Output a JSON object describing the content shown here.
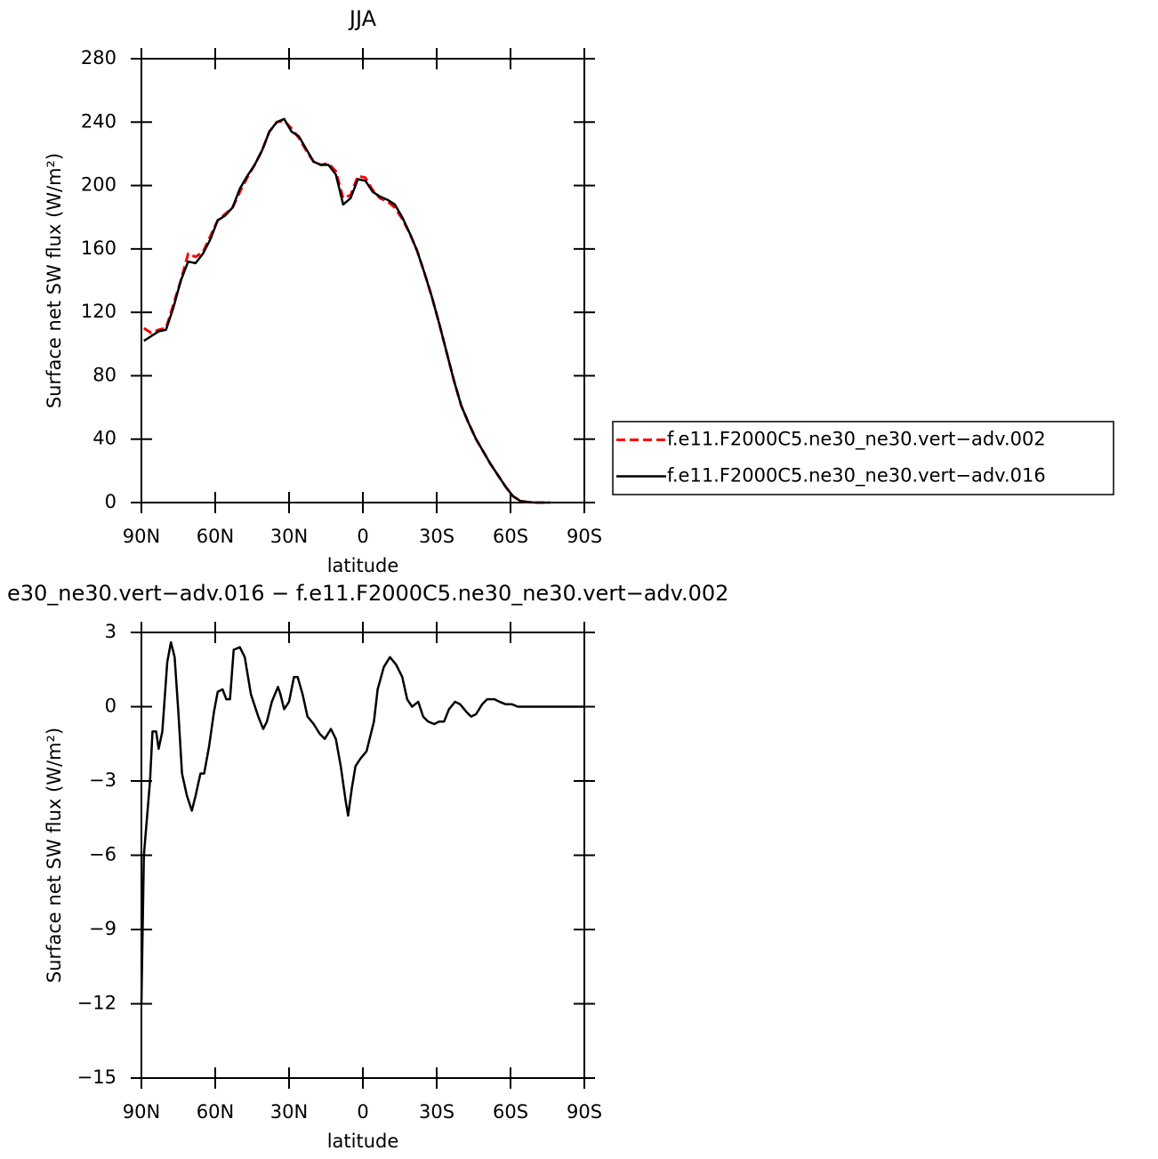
{
  "chart_data": [
    {
      "type": "line",
      "title": "JJA",
      "xlabel": "latitude",
      "ylabel": "Surface net SW flux (W/m²)",
      "x": [
        89,
        86,
        83,
        80,
        77,
        74,
        71,
        68,
        65,
        62,
        59,
        56,
        53,
        50,
        47,
        44,
        41,
        38,
        35,
        32,
        29,
        26,
        23,
        20,
        17,
        14,
        11,
        8,
        5,
        2,
        -1,
        -4,
        -7,
        -10,
        -13,
        -16,
        -19,
        -22,
        -25,
        -28,
        -31,
        -34,
        -37,
        -40,
        -43,
        -46,
        -49,
        -52,
        -55,
        -58,
        -61,
        -64,
        -67,
        -70,
        -73,
        -76
      ],
      "series": [
        {
          "name": "f.e11.F2000C5.ne30_ne30.vert−adv.002",
          "color": "#ff0000",
          "line_style": "dashed",
          "values": [
            110,
            107,
            109,
            110,
            125,
            140,
            157,
            155,
            158,
            168,
            178,
            182,
            186,
            196,
            205,
            213,
            222,
            234,
            240,
            241,
            236,
            230,
            222,
            215,
            213,
            214,
            209,
            192,
            194,
            206,
            205,
            197,
            192,
            190,
            186,
            179,
            170,
            159,
            145,
            130,
            113,
            95,
            77,
            61,
            50,
            40,
            32,
            24,
            17,
            10,
            4,
            1,
            0.3,
            0,
            0,
            0
          ]
        },
        {
          "name": "f.e11.F2000C5.ne30_ne30.vert−adv.016",
          "color": "#000000",
          "line_style": "solid",
          "values": [
            102,
            105,
            108,
            109,
            123,
            140,
            152,
            151,
            157,
            166,
            178,
            181,
            186,
            198,
            206,
            213,
            222,
            234,
            240,
            242,
            234,
            231,
            223,
            215,
            213,
            213,
            207,
            188,
            192,
            204,
            203,
            196,
            193,
            191,
            188,
            180,
            170,
            159,
            145,
            130,
            113,
            95,
            77,
            61,
            50,
            40,
            32,
            24,
            17,
            10,
            4,
            1,
            0.3,
            0,
            0,
            0
          ]
        }
      ],
      "xlim": [
        90,
        -90
      ],
      "xticks": [
        {
          "value": 90,
          "label": "90N"
        },
        {
          "value": 60,
          "label": "60N"
        },
        {
          "value": 30,
          "label": "30N"
        },
        0,
        {
          "value": -30,
          "label": "30S"
        },
        {
          "value": -60,
          "label": "60S"
        },
        {
          "value": -90,
          "label": "90S"
        }
      ],
      "ylim": [
        0,
        280
      ],
      "yticks": [
        0,
        40,
        80,
        120,
        160,
        200,
        240,
        280
      ],
      "legend": "right"
    },
    {
      "type": "line",
      "title": "e30_ne30.vert−adv.016 − f.e11.F2000C5.ne30_ne30.vert−adv.002",
      "xlabel": "latitude",
      "ylabel": "Surface net SW flux (W/m²)",
      "x": [
        90,
        89,
        86.5,
        85.5,
        84,
        83,
        81.5,
        79.5,
        78,
        76.5,
        75,
        73.5,
        71.5,
        69.5,
        68,
        66,
        64.5,
        62.5,
        60.5,
        59,
        57,
        55.5,
        54,
        52.5,
        50,
        48,
        45.5,
        42.5,
        40.5,
        39,
        37,
        34.5,
        33.5,
        32,
        30,
        28,
        26.5,
        24.5,
        22.5,
        20,
        17.5,
        15.5,
        13,
        11,
        9,
        7,
        6,
        4.5,
        3,
        1,
        -1.5,
        -4.5,
        -6,
        -8.5,
        -11,
        -13.5,
        -16,
        -18,
        -20,
        -22.5,
        -24.5,
        -26.5,
        -29,
        -31,
        -33,
        -35,
        -37.5,
        -39.5,
        -42,
        -44,
        -46,
        -48.5,
        -50.5,
        -53.5,
        -55.5,
        -58,
        -60.5,
        -63,
        -66,
        -70,
        -80,
        -90
      ],
      "values": [
        -12,
        -6,
        -3,
        -1,
        -1,
        -1.7,
        -1,
        1.8,
        2.6,
        2,
        -0.2,
        -2.7,
        -3.6,
        -4.2,
        -3.6,
        -2.7,
        -2.7,
        -1.6,
        -0.2,
        0.6,
        0.7,
        0.3,
        0.3,
        2.3,
        2.4,
        2,
        0.5,
        -0.4,
        -0.9,
        -0.6,
        0.2,
        0.8,
        0.5,
        -0.1,
        0.2,
        1.2,
        1.2,
        0.5,
        -0.4,
        -0.7,
        -1.1,
        -1.3,
        -0.9,
        -1.3,
        -2.4,
        -3.8,
        -4.4,
        -3.3,
        -2.4,
        -2.1,
        -1.8,
        -0.6,
        0.7,
        1.6,
        2.0,
        1.7,
        1.2,
        0.3,
        0,
        0.2,
        -0.4,
        -0.6,
        -0.7,
        -0.6,
        -0.6,
        -0.1,
        0.2,
        0.1,
        -0.2,
        -0.4,
        -0.3,
        0.1,
        0.3,
        0.3,
        0.2,
        0.1,
        0.1,
        0,
        0,
        0,
        0,
        0
      ],
      "color": "#000000",
      "xlim": [
        90,
        -90
      ],
      "xticks": [
        {
          "value": 90,
          "label": "90N"
        },
        {
          "value": 60,
          "label": "60N"
        },
        {
          "value": 30,
          "label": "30N"
        },
        0,
        {
          "value": -30,
          "label": "30S"
        },
        {
          "value": -60,
          "label": "60S"
        },
        {
          "value": -90,
          "label": "90S"
        }
      ],
      "ylim": [
        -15,
        3
      ],
      "yticks": [
        {
          "value": -15,
          "label": "−15"
        },
        {
          "value": -12,
          "label": "−12"
        },
        {
          "value": -9,
          "label": "−9"
        },
        {
          "value": -6,
          "label": "−6"
        },
        {
          "value": -3,
          "label": "−3"
        },
        0,
        3
      ]
    }
  ]
}
